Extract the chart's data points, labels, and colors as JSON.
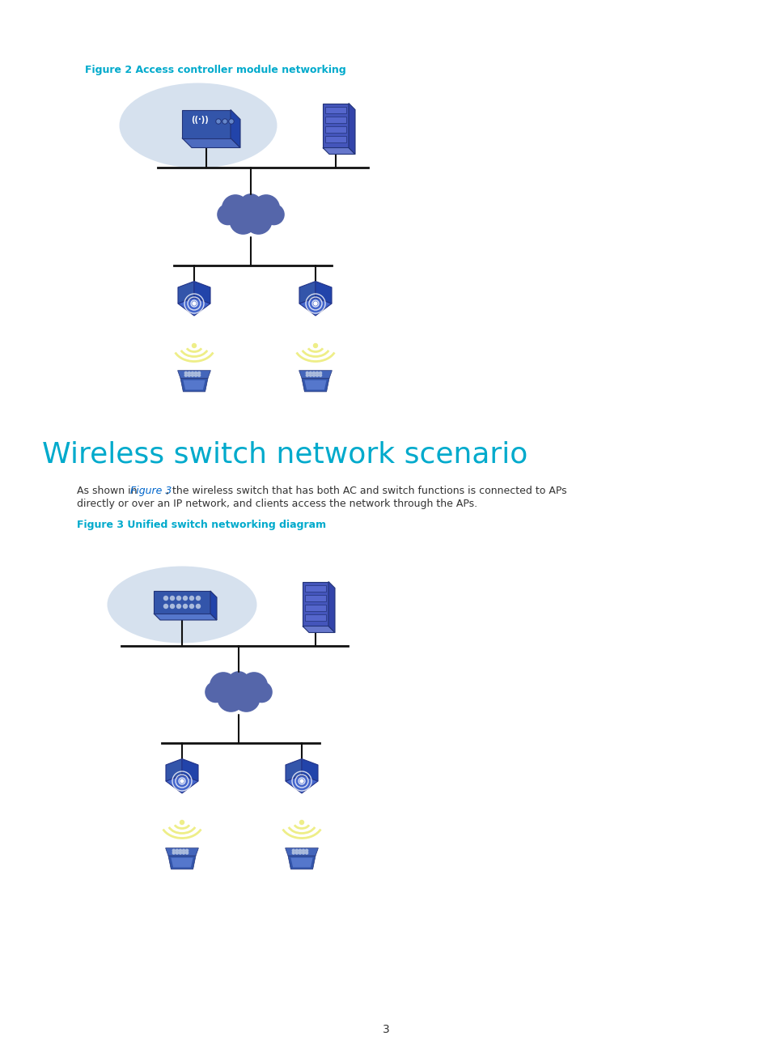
{
  "bg_color": "#ffffff",
  "fig_width": 9.54,
  "fig_height": 12.96,
  "fig1_title": "Figure 2 Access controller module networking",
  "fig2_title": "Figure 3 Unified switch networking diagram",
  "section_title": "Wireless switch network scenario",
  "body_text": "As shown in Figure 3, the wireless switch that has both AC and switch functions is connected to APs\ndirectly or over an IP network, and clients access the network through the APs.",
  "link_text": "Figure 3",
  "page_num": "3",
  "title_color": "#00aacc",
  "section_color": "#00aacc",
  "link_color": "#0066cc",
  "body_color": "#333333",
  "page_color": "#333333",
  "ellipse_color": "#c5d5e8",
  "cloud_color": "#5566aa",
  "ap_color": "#3355aa",
  "switch_color": "#3355aa",
  "server_color": "#4455aa",
  "line_color": "#111111",
  "wifi_color": "#eeee88",
  "laptop_color": "#4455aa"
}
